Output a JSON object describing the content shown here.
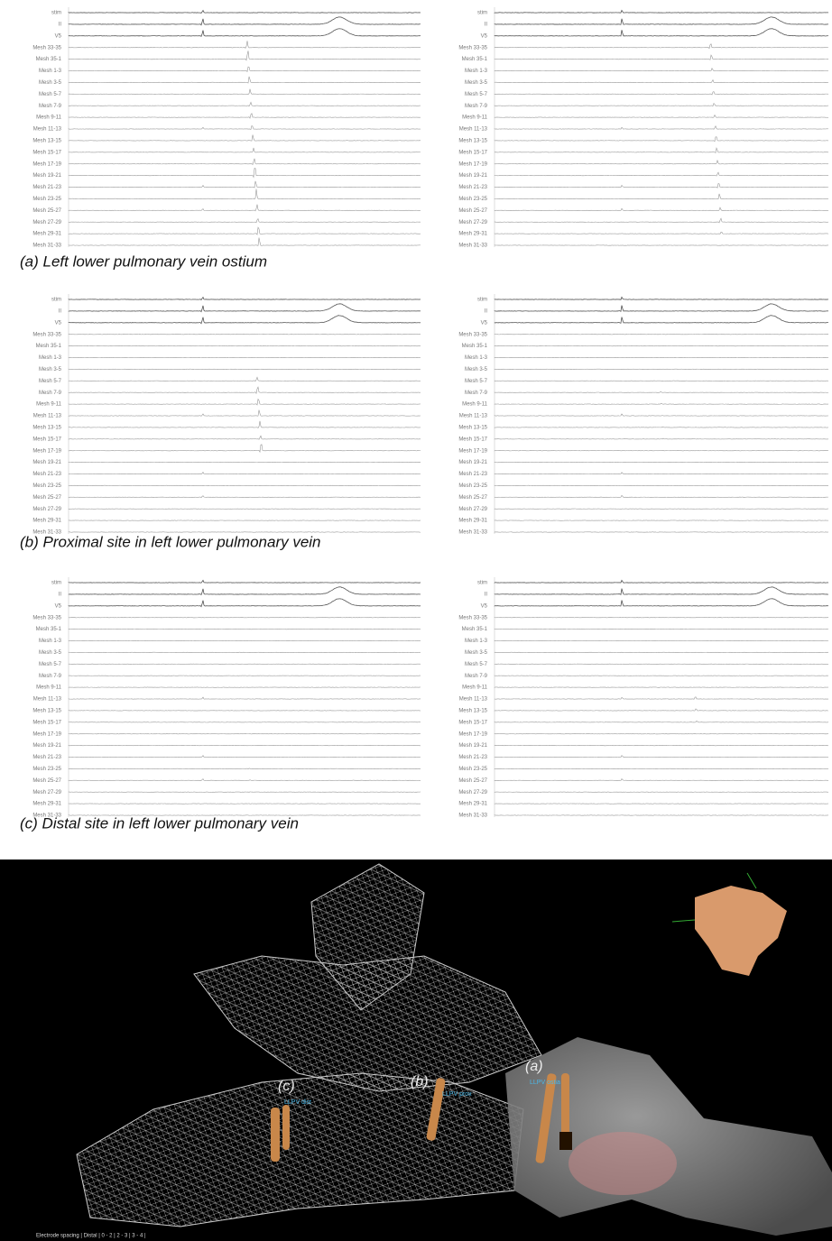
{
  "channels": [
    "stim",
    "II",
    "V5",
    "Mesh 33-35",
    "Mesh 35-1",
    "Mesh 1-3",
    "Mesh 3-5",
    "Mesh 5-7",
    "Mesh 7-9",
    "Mesh 9-11",
    "Mesh 11-13",
    "Mesh 13-15",
    "Mesh 15-17",
    "Mesh 17-19",
    "Mesh 19-21",
    "Mesh 21-23",
    "Mesh 23-25",
    "Mesh 25-27",
    "Mesh 27-29",
    "Mesh 29-31",
    "Mesh 31-33"
  ],
  "panels": [
    {
      "caption": "(a) Left lower pulmonary vein ostium"
    },
    {
      "caption": "(b) Proximal site in left lower pulmonary vein"
    },
    {
      "caption": "(c) Distal site in left lower pulmonary vein"
    }
  ],
  "map": {
    "markers": [
      {
        "label": "(a)",
        "name": "LLPV ostia"
      },
      {
        "label": "(b)",
        "name": "LLPV prox"
      },
      {
        "label": "(c)",
        "name": "LLPV dist"
      }
    ],
    "footer": "Electrode spacing | Distal | 0 - 2 | 2 - 3 | 3 - 4 |"
  }
}
